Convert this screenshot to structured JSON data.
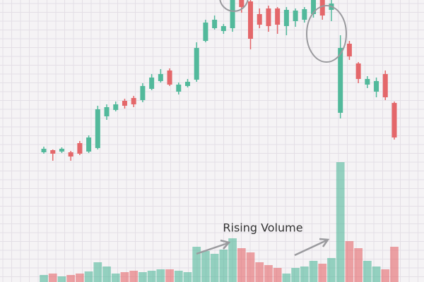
{
  "chart_data": {
    "type": "candlestick",
    "annotation": "Rising Volume",
    "up_color": "#52b99b",
    "down_color": "#e4676a",
    "ylim": [
      0,
      400
    ],
    "y2lim": [
      0,
      400
    ],
    "open": [
      184,
      187,
      185,
      184,
      197,
      185,
      190,
      235,
      244,
      257,
      261,
      258,
      274,
      285,
      300,
      270,
      278,
      287,
      342,
      360,
      356,
      360,
      400,
      398,
      380,
      388,
      388,
      363,
      370,
      372,
      380,
      400,
      386,
      240,
      338,
      310,
      280,
      270,
      295,
      254
    ],
    "close": [
      189,
      182,
      189,
      178,
      182,
      205,
      245,
      248,
      252,
      250,
      252,
      278,
      290,
      295,
      280,
      280,
      284,
      332,
      368,
      372,
      363,
      400,
      390,
      345,
      365,
      363,
      365,
      386,
      385,
      387,
      400,
      378,
      395,
      332,
      320,
      288,
      288,
      285,
      262,
      205
    ],
    "high": [
      192,
      188,
      191,
      186,
      200,
      208,
      250,
      252,
      256,
      260,
      264,
      282,
      295,
      302,
      303,
      283,
      288,
      340,
      372,
      378,
      366,
      400,
      400,
      400,
      388,
      392,
      390,
      390,
      388,
      390,
      400,
      400,
      400,
      350,
      342,
      312,
      292,
      290,
      300,
      256
    ],
    "low": [
      182,
      172,
      183,
      172,
      180,
      183,
      188,
      230,
      242,
      246,
      248,
      255,
      272,
      283,
      278,
      266,
      276,
      284,
      340,
      358,
      352,
      355,
      382,
      330,
      360,
      355,
      352,
      350,
      362,
      368,
      375,
      372,
      370,
      232,
      315,
      282,
      275,
      262,
      258,
      202
    ],
    "volume": [
      10,
      12,
      8,
      10,
      12,
      15,
      28,
      22,
      12,
      14,
      16,
      14,
      16,
      18,
      18,
      16,
      14,
      50,
      44,
      40,
      46,
      62,
      48,
      42,
      28,
      24,
      20,
      12,
      20,
      22,
      30,
      26,
      34,
      170,
      58,
      48,
      30,
      22,
      18,
      50
    ]
  }
}
